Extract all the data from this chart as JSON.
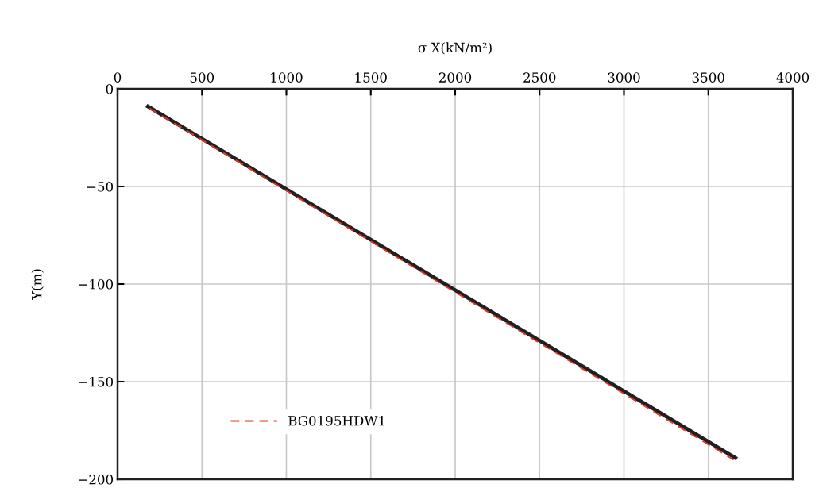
{
  "chart_data": {
    "type": "line",
    "xlabel": "σ X(kN/m²)",
    "ylabel": "Y(m)",
    "xlim": [
      0,
      4000
    ],
    "xticks": [
      0,
      500,
      1000,
      1500,
      2000,
      2500,
      3000,
      3500,
      4000
    ],
    "ylim": [
      -200,
      0
    ],
    "yticks": [
      -200,
      -150,
      -100,
      -50,
      0
    ],
    "grid": true,
    "legend": "bottom left",
    "series": [
      {
        "color": "#231f20",
        "x": [
          180,
          3660
        ],
        "values": [
          -9,
          -189
        ],
        "line_style": "solid"
      },
      {
        "name": "BG0195HDW1",
        "color": "#e8361e",
        "x": [
          190,
          3650
        ],
        "values": [
          -10,
          -190
        ],
        "line_style": "dashed"
      }
    ]
  }
}
